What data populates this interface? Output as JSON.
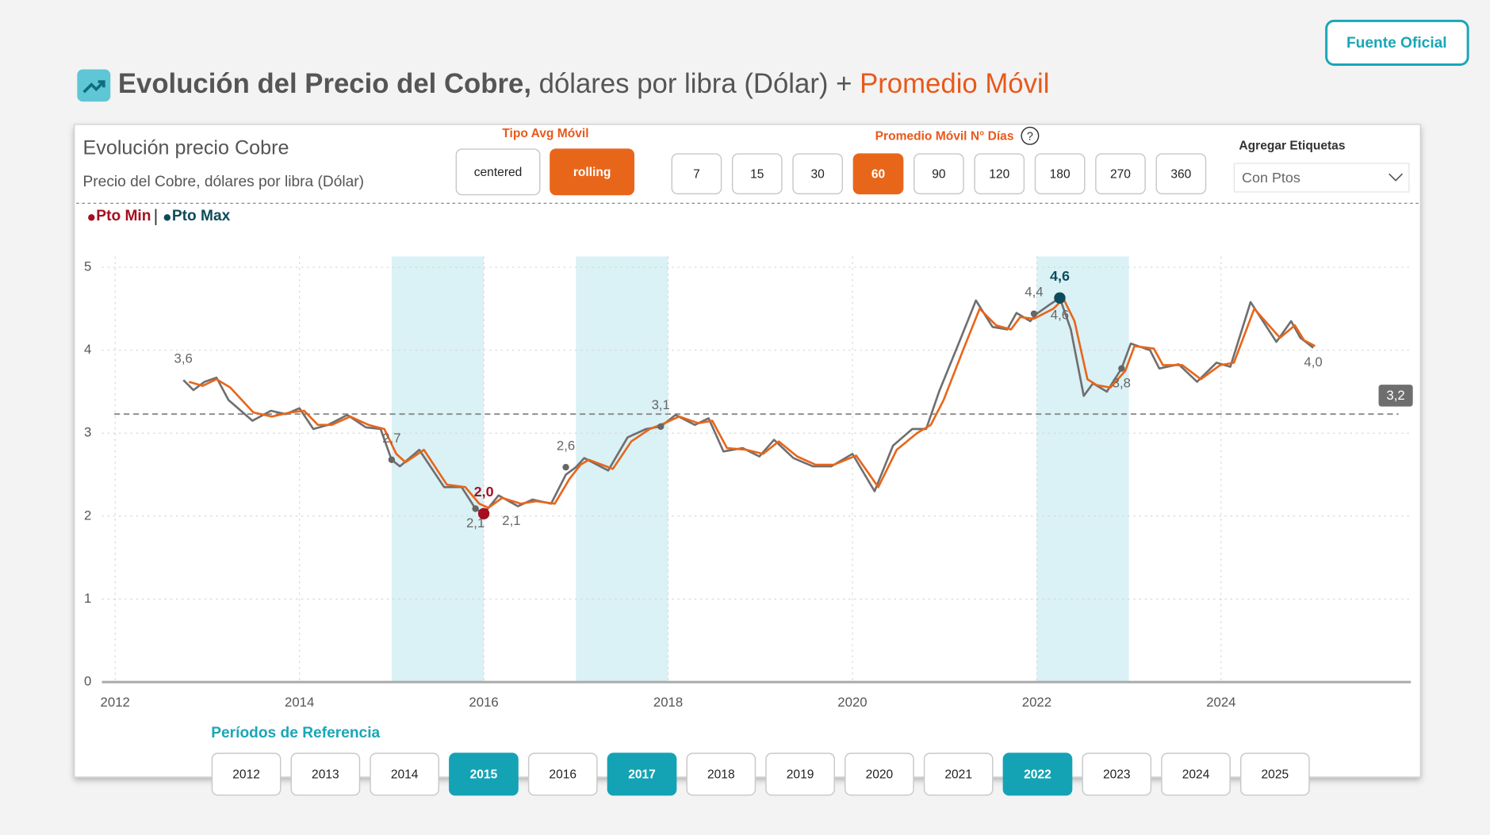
{
  "header": {
    "title_bold": "Evolución del Precio del Cobre,",
    "title_rest": " dólares por libra (Dólar) + ",
    "title_accent": "Promedio Móvil",
    "source_button": "Fuente Oficial"
  },
  "card": {
    "title": "Evolución precio Cobre",
    "subtitle": "Precio del Cobre, dólares por libra (Dólar)"
  },
  "controls": {
    "avg_type": {
      "label": "Tipo Avg Móvil",
      "options": [
        "centered",
        "rolling"
      ],
      "selected": "rolling"
    },
    "days": {
      "label": "Promedio Móvil N° Días",
      "help": "?",
      "options": [
        7,
        15,
        30,
        60,
        90,
        120,
        180,
        270,
        360
      ],
      "selected": 60
    },
    "labels": {
      "label": "Agregar Etiquetas",
      "value": "Con Ptos"
    }
  },
  "chart_data": {
    "type": "line",
    "legend_items": [
      {
        "name": "Pto Min",
        "color": "#a50f1f"
      },
      {
        "name": "Pto Max",
        "color": "#0d4b5b"
      }
    ],
    "xlim": [
      2011.856,
      2026.06
    ],
    "ylim": [
      0,
      5.13
    ],
    "xticks": [
      2012,
      2014,
      2016,
      2018,
      2020,
      2022,
      2024
    ],
    "yticks": [
      0,
      1,
      2,
      3,
      4,
      5
    ],
    "grid": true,
    "series": [
      {
        "color": "#6f6f6f",
        "x": [
          2012.74,
          2012.85,
          2012.97,
          2013.1,
          2013.23,
          2013.49,
          2013.69,
          2013.85,
          2014.0,
          2014.15,
          2014.31,
          2014.52,
          2014.72,
          2014.88,
          2015.0,
          2015.09,
          2015.3,
          2015.57,
          2015.76,
          2015.91,
          2016.0,
          2016.16,
          2016.37,
          2016.53,
          2016.73,
          2016.89,
          2017.0,
          2017.09,
          2017.35,
          2017.56,
          2017.76,
          2017.92,
          2018.08,
          2018.29,
          2018.44,
          2018.6,
          2018.81,
          2018.99,
          2019.15,
          2019.36,
          2019.57,
          2019.77,
          2020.0,
          2020.24,
          2020.44,
          2020.65,
          2020.8,
          2020.94,
          2021.16,
          2021.34,
          2021.52,
          2021.68,
          2021.78,
          2021.93,
          2022.0,
          2022.14,
          2022.25,
          2022.37,
          2022.51,
          2022.61,
          2022.76,
          2022.92,
          2023.02,
          2023.23,
          2023.33,
          2023.54,
          2023.74,
          2023.95,
          2024.1,
          2024.32,
          2024.6,
          2024.76,
          2024.86,
          2025.0
        ],
        "values": [
          3.64,
          3.52,
          3.62,
          3.67,
          3.4,
          3.15,
          3.27,
          3.23,
          3.3,
          3.05,
          3.1,
          3.22,
          3.07,
          3.05,
          2.68,
          2.6,
          2.8,
          2.35,
          2.35,
          2.09,
          2.03,
          2.25,
          2.12,
          2.2,
          2.15,
          2.5,
          2.59,
          2.7,
          2.55,
          2.95,
          3.05,
          3.08,
          3.22,
          3.1,
          3.18,
          2.78,
          2.82,
          2.72,
          2.92,
          2.7,
          2.6,
          2.6,
          2.75,
          2.3,
          2.85,
          3.05,
          3.05,
          3.5,
          4.1,
          4.6,
          4.28,
          4.25,
          4.45,
          4.35,
          4.44,
          4.55,
          4.63,
          4.25,
          3.45,
          3.6,
          3.5,
          3.78,
          4.08,
          4.0,
          3.78,
          3.83,
          3.62,
          3.85,
          3.8,
          4.58,
          4.1,
          4.35,
          4.15,
          4.03
        ]
      },
      {
        "color": "#e8661a",
        "x": [
          2012.8,
          2012.95,
          2013.1,
          2013.25,
          2013.5,
          2013.7,
          2013.9,
          2014.05,
          2014.2,
          2014.35,
          2014.55,
          2014.75,
          2014.92,
          2015.05,
          2015.15,
          2015.35,
          2015.6,
          2015.8,
          2015.95,
          2016.05,
          2016.2,
          2016.4,
          2016.57,
          2016.77,
          2016.93,
          2017.05,
          2017.14,
          2017.4,
          2017.6,
          2017.8,
          2017.96,
          2018.12,
          2018.33,
          2018.48,
          2018.64,
          2018.85,
          2019.03,
          2019.2,
          2019.4,
          2019.6,
          2019.8,
          2020.04,
          2020.28,
          2020.48,
          2020.7,
          2020.85,
          2020.99,
          2021.2,
          2021.38,
          2021.56,
          2021.72,
          2021.82,
          2021.97,
          2022.04,
          2022.18,
          2022.29,
          2022.41,
          2022.55,
          2022.65,
          2022.8,
          2022.96,
          2023.06,
          2023.27,
          2023.37,
          2023.58,
          2023.78,
          2023.99,
          2024.14,
          2024.36,
          2024.64,
          2024.8,
          2024.9,
          2025.02
        ],
        "values": [
          3.62,
          3.57,
          3.65,
          3.55,
          3.25,
          3.2,
          3.25,
          3.27,
          3.1,
          3.1,
          3.2,
          3.1,
          3.05,
          2.75,
          2.65,
          2.8,
          2.38,
          2.35,
          2.15,
          2.1,
          2.22,
          2.15,
          2.18,
          2.15,
          2.45,
          2.62,
          2.68,
          2.57,
          2.9,
          3.05,
          3.12,
          3.2,
          3.12,
          3.15,
          2.82,
          2.8,
          2.75,
          2.9,
          2.72,
          2.62,
          2.62,
          2.73,
          2.35,
          2.8,
          3.0,
          3.1,
          3.4,
          4.0,
          4.5,
          4.3,
          4.25,
          4.4,
          4.38,
          4.42,
          4.5,
          4.62,
          4.35,
          3.65,
          3.58,
          3.55,
          3.75,
          4.05,
          4.02,
          3.82,
          3.82,
          3.65,
          3.82,
          3.85,
          4.5,
          4.15,
          4.3,
          4.12,
          4.05
        ]
      }
    ],
    "average": {
      "value": 3.23,
      "label": "3,2"
    },
    "annotations": [
      {
        "x": 2012.74,
        "value": 3.64,
        "label": "3,6",
        "style": "text",
        "place": "above"
      },
      {
        "x": 2015.0,
        "value": 2.68,
        "label": "2,7",
        "style": "point",
        "place": "above"
      },
      {
        "x": 2015.91,
        "value": 2.09,
        "label": "2,1",
        "style": "point",
        "place": "below"
      },
      {
        "x": 2016.0,
        "value": 2.03,
        "label": "2,0",
        "style": "min",
        "place": "above"
      },
      {
        "x": 2016.3,
        "value": 2.12,
        "label": "2,1",
        "style": "text",
        "place": "below"
      },
      {
        "x": 2016.89,
        "value": 2.59,
        "label": "2,6",
        "style": "point",
        "place": "above"
      },
      {
        "x": 2017.92,
        "value": 3.08,
        "label": "3,1",
        "style": "point",
        "place": "above"
      },
      {
        "x": 2021.97,
        "value": 4.44,
        "label": "4,4",
        "style": "point",
        "place": "above"
      },
      {
        "x": 2022.25,
        "value": 4.63,
        "label": "4,6",
        "style": "max",
        "place": "above"
      },
      {
        "x": 2022.25,
        "value": 4.6,
        "label": "4,6",
        "style": "text",
        "place": "below"
      },
      {
        "x": 2022.92,
        "value": 3.78,
        "label": "3,8",
        "style": "point",
        "place": "below"
      },
      {
        "x": 2025.0,
        "value": 4.03,
        "label": "4,0",
        "style": "text",
        "place": "below"
      }
    ]
  },
  "periods": {
    "title": "Períodos de Referencia",
    "years": [
      2012,
      2013,
      2014,
      2015,
      2016,
      2017,
      2018,
      2019,
      2020,
      2021,
      2022,
      2023,
      2024,
      2025
    ],
    "selected": [
      2015,
      2017,
      2022
    ]
  }
}
